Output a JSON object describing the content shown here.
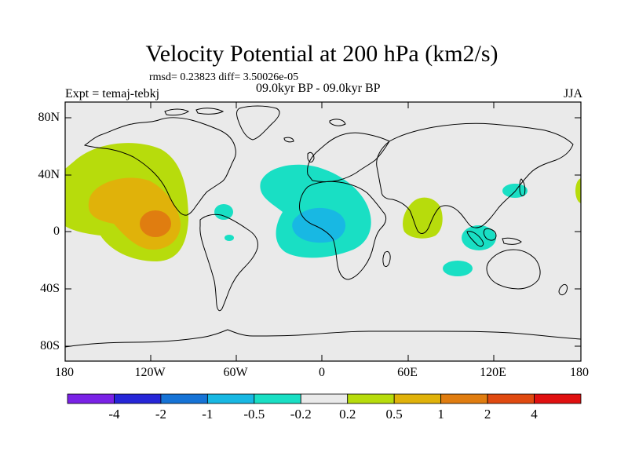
{
  "title": "Velocity Potential at 200 hPa (km2/s)",
  "stats": "rmsd= 0.23823 diff= 3.50026e-05",
  "experiment": "Expt = temaj-tebkj",
  "period": "09.0kyr BP - 09.0kyr BP",
  "season": "JJA",
  "lat_ticks": [
    "80N",
    "40N",
    "0",
    "40S",
    "80S"
  ],
  "lon_ticks": [
    "180",
    "120W",
    "60W",
    "0",
    "60E",
    "120E",
    "180"
  ],
  "colorbar": {
    "colors": [
      "#7a22e6",
      "#2626d8",
      "#1673d6",
      "#18b8e3",
      "#19dfc4",
      "#eaeaea",
      "#b7dc0c",
      "#e0b20a",
      "#e07d10",
      "#e04a10",
      "#e01010"
    ],
    "labels": [
      "-4",
      "-2",
      "-1",
      "-0.5",
      "-0.2",
      "0.2",
      "0.5",
      "1",
      "2",
      "4"
    ]
  }
}
